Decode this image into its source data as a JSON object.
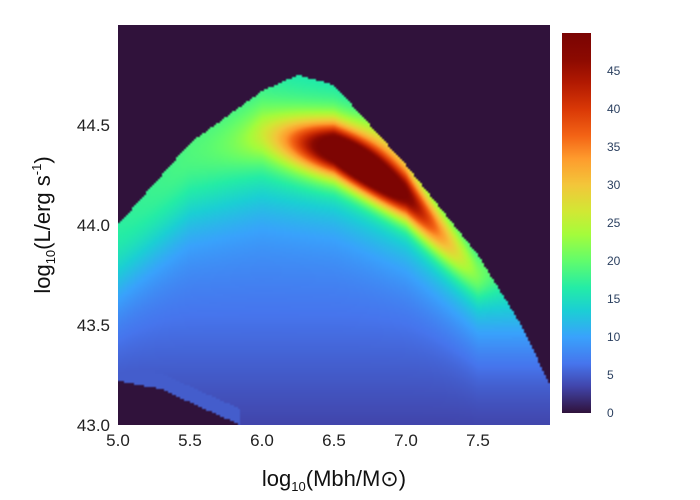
{
  "chart_data": {
    "type": "heatmap",
    "title": "",
    "xlabel": {
      "prefix": "log",
      "sub": "10",
      "rest": "(Mbh/M⊙)"
    },
    "ylabel": {
      "prefix": "log",
      "sub": "10",
      "rest": "(L/erg s",
      "sup": "-1",
      "end": ")"
    },
    "xlim": [
      5.0,
      8.0
    ],
    "ylim": [
      43.0,
      45.0
    ],
    "x_ticks": [
      "5.0",
      "5.5",
      "6.0",
      "6.5",
      "7.0",
      "7.5"
    ],
    "y_ticks": [
      "43.0",
      "43.5",
      "44.0",
      "44.5"
    ],
    "colorbar": {
      "min": 0,
      "max": 50,
      "ticks": [
        "0",
        "5",
        "10",
        "15",
        "20",
        "25",
        "30",
        "35",
        "40",
        "45"
      ],
      "colorscale": "turbo"
    },
    "background_color": "#30123b",
    "peak": {
      "x": 6.75,
      "y": 44.38,
      "value": 50
    },
    "upper_boundary": [
      [
        5.0,
        44.0
      ],
      [
        5.5,
        44.41
      ],
      [
        6.0,
        44.67
      ],
      [
        6.25,
        44.75
      ],
      [
        6.5,
        44.7
      ],
      [
        7.0,
        44.3
      ],
      [
        7.5,
        43.85
      ],
      [
        7.8,
        43.5
      ],
      [
        8.0,
        43.2
      ]
    ],
    "lower_boundary": [
      [
        5.0,
        43.22
      ],
      [
        5.3,
        43.18
      ],
      [
        5.6,
        43.08
      ],
      [
        5.85,
        43.0
      ]
    ],
    "ridge": [
      [
        5.0,
        43.97
      ],
      [
        5.5,
        44.33
      ],
      [
        6.0,
        44.45
      ],
      [
        6.5,
        44.38
      ],
      [
        7.0,
        44.15
      ],
      [
        7.5,
        43.75
      ]
    ]
  }
}
